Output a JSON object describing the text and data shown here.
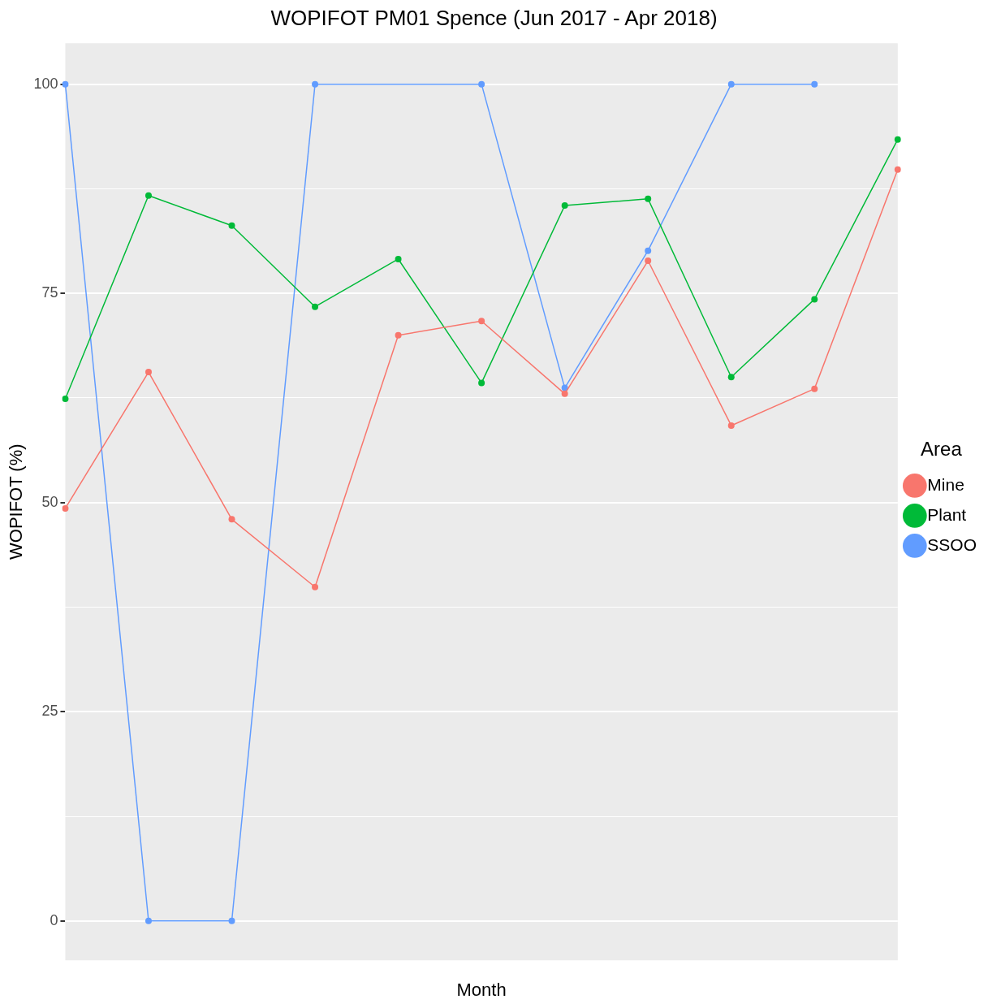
{
  "chart_data": {
    "type": "line",
    "title": "WOPIFOT PM01 Spence (Jun 2017 - Apr 2018)",
    "xlabel": "Month",
    "ylabel": "WOPIFOT (%)",
    "legend_title": "Area",
    "categories": [
      null,
      null,
      null,
      null,
      null,
      null,
      null,
      null,
      null,
      null,
      null
    ],
    "series": [
      {
        "name": "Mine",
        "color": "#f8766d",
        "values": [
          49.3,
          65.6,
          48.0,
          39.9,
          70.0,
          71.7,
          63.0,
          78.9,
          59.2,
          63.6,
          89.8
        ]
      },
      {
        "name": "Plant",
        "color": "#00ba38",
        "values": [
          62.4,
          86.7,
          83.1,
          73.4,
          79.1,
          64.3,
          85.5,
          86.3,
          65.0,
          74.3,
          93.4
        ]
      },
      {
        "name": "SSOO",
        "color": "#619cff",
        "values": [
          100,
          0,
          0,
          100,
          null,
          100,
          63.7,
          80.1,
          100,
          100,
          null
        ]
      }
    ],
    "ylim": [
      -4.7,
      104.9
    ],
    "yticks": [
      0,
      {
        "value": 12.5,
        "label": null
      },
      25,
      {
        "value": 37.5,
        "label": null
      },
      50,
      {
        "value": 62.5,
        "label": null
      },
      75,
      {
        "value": 87.5,
        "label": null
      },
      100
    ],
    "grid": "y",
    "legend": "right",
    "marker": "circle",
    "line_style": "solid"
  }
}
